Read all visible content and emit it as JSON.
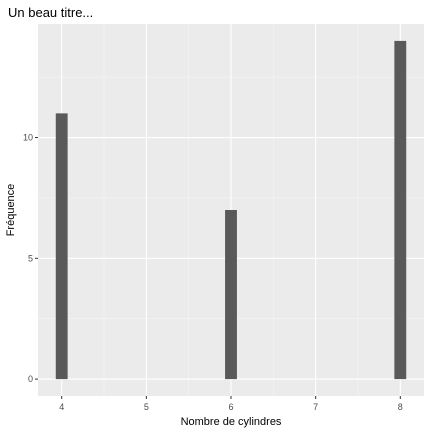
{
  "chart_data": {
    "type": "bar",
    "title": "Un beau titre...",
    "xlabel": "Nombre de cylindres",
    "ylabel": "Fréquence",
    "x_ticks": [
      4,
      5,
      6,
      7,
      8
    ],
    "y_ticks": [
      0,
      5,
      10
    ],
    "xlim": [
      3.72,
      8.28
    ],
    "ylim": [
      -0.7,
      14.7
    ],
    "bars": [
      {
        "x": 4,
        "value": 11
      },
      {
        "x": 6,
        "value": 7
      },
      {
        "x": 8,
        "value": 14
      }
    ],
    "bar_width": 0.14,
    "grid": true,
    "colors": {
      "panel": "#ebebeb",
      "grid_major": "#ffffff",
      "grid_minor": "#f5f5f5",
      "bar": "#595959",
      "tick": "#333333"
    }
  }
}
